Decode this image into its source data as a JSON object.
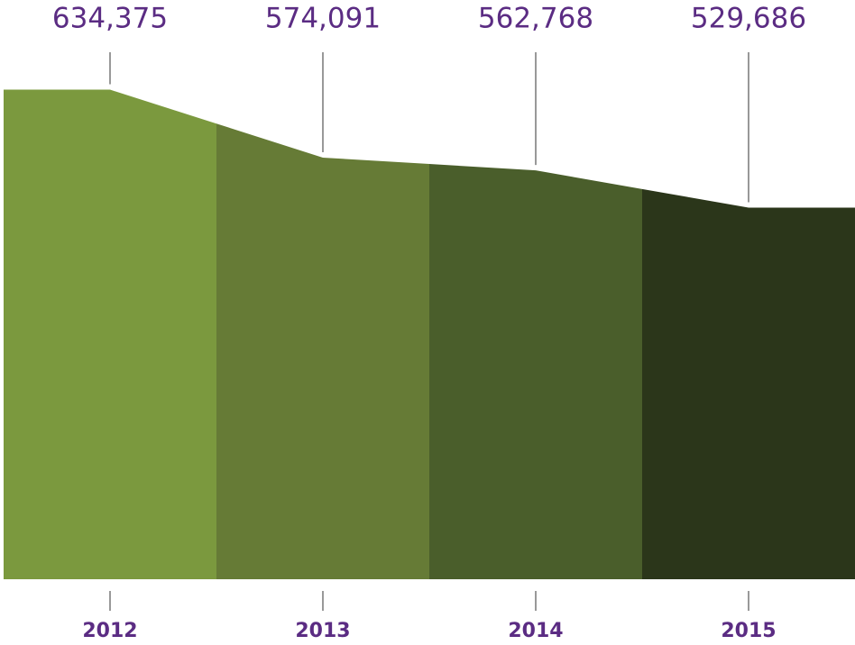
{
  "chart_data": {
    "type": "area",
    "categories": [
      "2012",
      "2013",
      "2014",
      "2015"
    ],
    "values": [
      634375,
      574091,
      562768,
      529686
    ],
    "value_labels": [
      "634,375",
      "574,091",
      "562,768",
      "529,686"
    ],
    "colors": [
      "#7b993e",
      "#667b36",
      "#4a5e2b",
      "#2b361a"
    ],
    "ylim": [
      200000,
      650000
    ]
  }
}
